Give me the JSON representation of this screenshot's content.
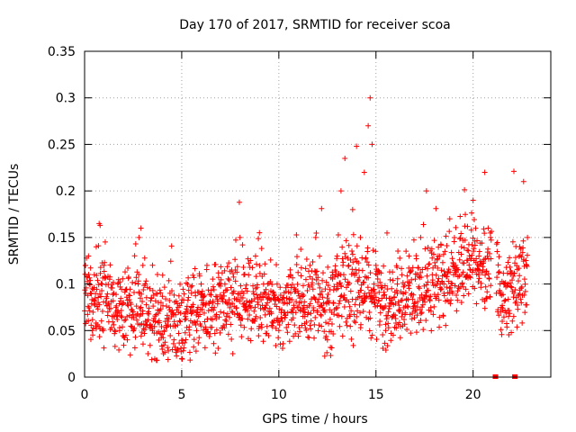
{
  "chart_data": {
    "type": "scatter",
    "title": "Day 170 of 2017, SRMTID for receiver scoa",
    "xlabel": "GPS time / hours",
    "ylabel": "SRMTID / TECUs",
    "xlim": [
      0,
      24
    ],
    "ylim": [
      0,
      0.35
    ],
    "xticks": [
      0,
      5,
      10,
      15,
      20
    ],
    "xtick_labels": [
      "0",
      "5",
      "10",
      "15",
      "20"
    ],
    "yticks": [
      0,
      0.05,
      0.1,
      0.15,
      0.2,
      0.25,
      0.3,
      0.35
    ],
    "ytick_labels": [
      "0",
      "0.05",
      "0.1",
      "0.15",
      "0.2",
      "0.25",
      "0.3",
      "0.35"
    ],
    "grid": true,
    "marker": "plus",
    "color": "#ff0000",
    "sample_points": [
      [
        0.05,
        0.12
      ],
      [
        0.1,
        0.06
      ],
      [
        0.2,
        0.13
      ],
      [
        0.3,
        0.09
      ],
      [
        0.4,
        0.05
      ],
      [
        0.5,
        0.11
      ],
      [
        0.6,
        0.14
      ],
      [
        0.7,
        0.08
      ],
      [
        0.75,
        0.165
      ],
      [
        0.8,
        0.163
      ],
      [
        0.9,
        0.1
      ],
      [
        1.0,
        0.12
      ],
      [
        1.2,
        0.07
      ],
      [
        1.5,
        0.09
      ],
      [
        1.8,
        0.05
      ],
      [
        2.0,
        0.08
      ],
      [
        2.2,
        0.04
      ],
      [
        2.5,
        0.07
      ],
      [
        2.8,
        0.15
      ],
      [
        2.9,
        0.16
      ],
      [
        3.0,
        0.12
      ],
      [
        3.2,
        0.06
      ],
      [
        3.5,
        0.05
      ],
      [
        3.8,
        0.08
      ],
      [
        4.0,
        0.03
      ],
      [
        4.3,
        0.06
      ],
      [
        4.6,
        0.04
      ],
      [
        5.0,
        0.02
      ],
      [
        5.2,
        0.07
      ],
      [
        5.5,
        0.09
      ],
      [
        5.8,
        0.06
      ],
      [
        6.0,
        0.1
      ],
      [
        6.3,
        0.12
      ],
      [
        6.6,
        0.08
      ],
      [
        7.0,
        0.07
      ],
      [
        7.3,
        0.06
      ],
      [
        7.6,
        0.09
      ],
      [
        8.0,
        0.15
      ],
      [
        8.2,
        0.11
      ],
      [
        8.5,
        0.08
      ],
      [
        8.8,
        0.13
      ],
      [
        9.0,
        0.155
      ],
      [
        9.3,
        0.09
      ],
      [
        9.6,
        0.07
      ],
      [
        10.0,
        0.05
      ],
      [
        10.3,
        0.08
      ],
      [
        10.6,
        0.11
      ],
      [
        11.0,
        0.09
      ],
      [
        11.3,
        0.07
      ],
      [
        11.6,
        0.12
      ],
      [
        11.9,
        0.15
      ],
      [
        12.2,
        0.181
      ],
      [
        12.5,
        0.04
      ],
      [
        12.8,
        0.08
      ],
      [
        13.0,
        0.13
      ],
      [
        13.2,
        0.2
      ],
      [
        13.4,
        0.235
      ],
      [
        13.6,
        0.12
      ],
      [
        13.8,
        0.18
      ],
      [
        14.0,
        0.248
      ],
      [
        14.2,
        0.15
      ],
      [
        14.4,
        0.22
      ],
      [
        14.6,
        0.27
      ],
      [
        14.7,
        0.3
      ],
      [
        14.8,
        0.25
      ],
      [
        14.9,
        0.1
      ],
      [
        15.0,
        0.12
      ],
      [
        15.2,
        0.06
      ],
      [
        15.5,
        0.05
      ],
      [
        15.8,
        0.08
      ],
      [
        16.1,
        0.1
      ],
      [
        16.4,
        0.09
      ],
      [
        16.7,
        0.13
      ],
      [
        17.0,
        0.08
      ],
      [
        17.3,
        0.15
      ],
      [
        17.6,
        0.2
      ],
      [
        17.9,
        0.11
      ],
      [
        18.2,
        0.13
      ],
      [
        18.5,
        0.09
      ],
      [
        18.8,
        0.17
      ],
      [
        19.1,
        0.12
      ],
      [
        19.4,
        0.14
      ],
      [
        19.7,
        0.11
      ],
      [
        20.0,
        0.19
      ],
      [
        20.3,
        0.13
      ],
      [
        20.6,
        0.22
      ],
      [
        20.9,
        0.15
      ],
      [
        21.2,
        0.09
      ],
      [
        21.5,
        0.06
      ],
      [
        21.8,
        0.1
      ],
      [
        22.1,
        0.221
      ],
      [
        22.4,
        0.14
      ],
      [
        22.6,
        0.21
      ],
      [
        22.8,
        0.15
      ]
    ],
    "zero_markers": [
      [
        21.15,
        0
      ],
      [
        22.15,
        0
      ]
    ]
  }
}
